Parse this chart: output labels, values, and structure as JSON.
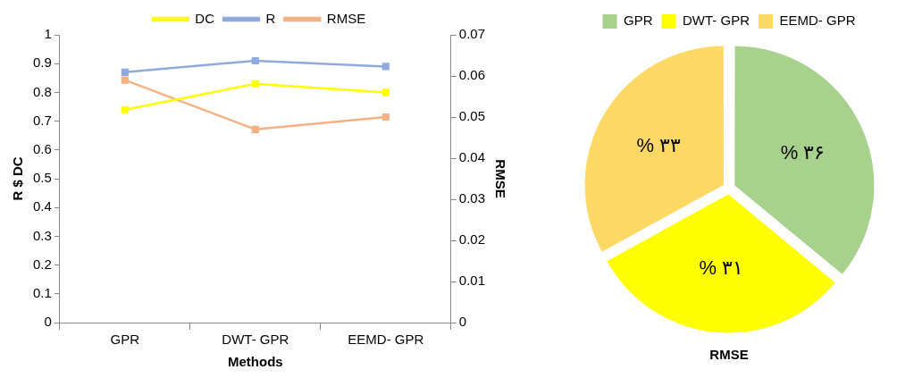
{
  "chart_data": [
    {
      "type": "line",
      "xlabel": "Methods",
      "ylabel": "R $ DC",
      "y2label": "RMSE",
      "categories": [
        "GPR",
        "DWT- GPR",
        "EEMD- GPR"
      ],
      "series": [
        {
          "name": "DC",
          "color": "#ffff00",
          "values": [
            0.74,
            0.83,
            0.8
          ]
        },
        {
          "name": "R",
          "color": "#8faadc",
          "values": [
            0.87,
            0.91,
            0.89
          ]
        },
        {
          "name": "RMSE",
          "color": "#f4b183",
          "values": [
            0.059,
            0.047,
            0.05
          ],
          "axis": "y2"
        }
      ],
      "ylim": [
        0,
        1
      ],
      "yticks": [
        0,
        0.1,
        0.2,
        0.3,
        0.4,
        0.5,
        0.6,
        0.7,
        0.8,
        0.9,
        1
      ],
      "y2lim": [
        0,
        0.07
      ],
      "y2ticks": [
        0,
        0.01,
        0.02,
        0.03,
        0.04,
        0.05,
        0.06,
        0.07
      ],
      "grid": false,
      "legend": "top",
      "marker": "square",
      "line_style": "solid"
    },
    {
      "type": "pie",
      "title": "RMSE",
      "categories": [
        "GPR",
        "DWT- GPR",
        "EEMD- GPR"
      ],
      "values": [
        36,
        31,
        33
      ],
      "colors": [
        "#a9d18e",
        "#ffff00",
        "#ffd966"
      ],
      "value_labels": [
        "% ۳۶",
        "% ۳۱",
        "% ۳۳"
      ],
      "legend": "top"
    }
  ]
}
